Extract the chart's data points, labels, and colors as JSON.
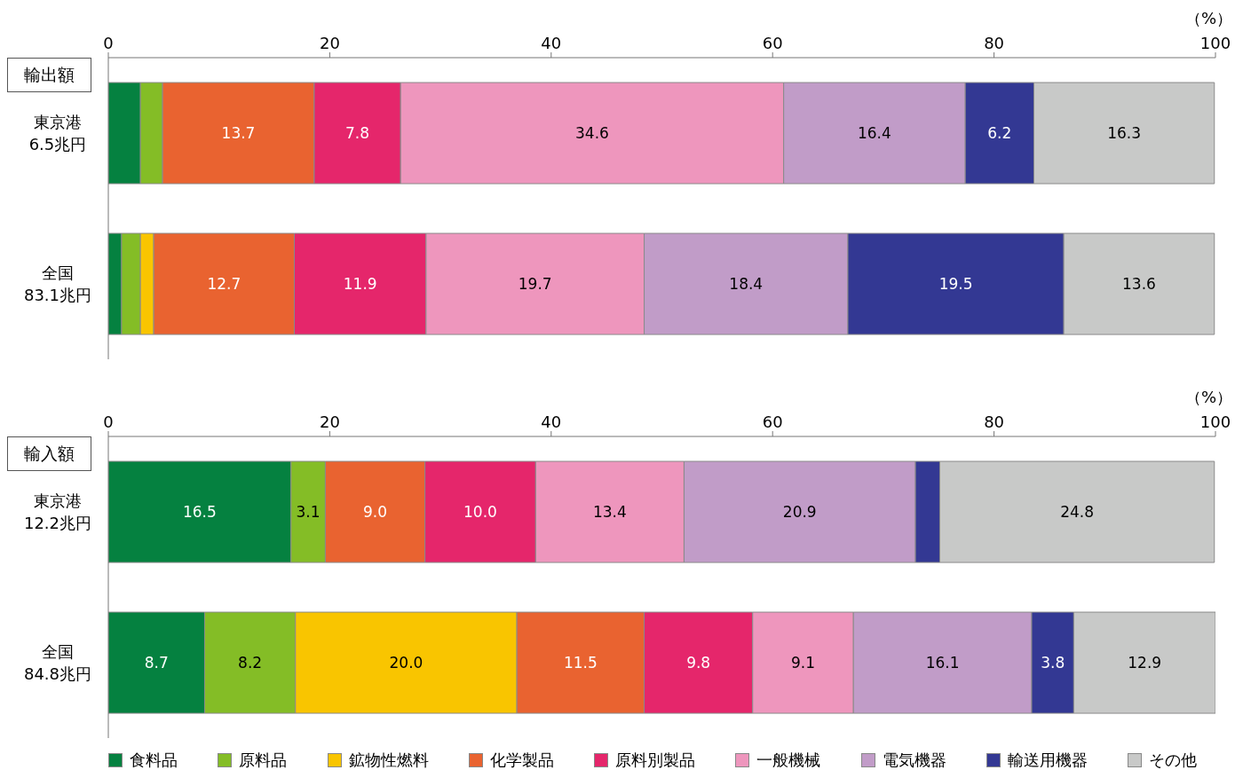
{
  "chart_data": [
    {
      "type": "bar",
      "orientation": "horizontal",
      "stacked": true,
      "title": "輸出額",
      "xlabel": "（%）",
      "categories": [
        "東京港\n6.5兆円",
        "全国\n83.1兆円"
      ],
      "xlim": [
        0,
        100
      ],
      "xticks": [
        0,
        20,
        40,
        60,
        80,
        100
      ],
      "series": [
        {
          "color": "#058140",
          "values": [
            2.9,
            1.2
          ],
          "value_labels": [
            null,
            null
          ]
        },
        {
          "color": "#84bd26",
          "values": [
            2.0,
            1.7
          ],
          "value_labels": [
            null,
            null
          ]
        },
        {
          "color": "#f9c500",
          "values": [
            null,
            1.2
          ],
          "value_labels": [
            null,
            null
          ]
        },
        {
          "color": "#e96330",
          "values": [
            13.7,
            12.7
          ],
          "value_labels": [
            "13.7",
            "12.7"
          ]
        },
        {
          "color": "#e5266b",
          "values": [
            7.8,
            11.9
          ],
          "value_labels": [
            "7.8",
            "11.9"
          ]
        },
        {
          "color": "#ee96bd",
          "values": [
            34.6,
            19.7
          ],
          "value_labels": [
            "34.6",
            "19.7"
          ]
        },
        {
          "color": "#c19cc8",
          "values": [
            16.4,
            18.4
          ],
          "value_labels": [
            "16.4",
            "18.4"
          ]
        },
        {
          "color": "#333893",
          "values": [
            6.2,
            19.5
          ],
          "value_labels": [
            "6.2",
            "19.5"
          ]
        },
        {
          "color": "#c8c9c8",
          "values": [
            16.3,
            13.6
          ],
          "value_labels": [
            "16.3",
            "13.6"
          ]
        }
      ]
    },
    {
      "type": "bar",
      "orientation": "horizontal",
      "stacked": true,
      "title": "輸入額",
      "xlabel": "（%）",
      "categories": [
        "東京港\n12.2兆円",
        "全国\n84.8兆円"
      ],
      "xlim": [
        0,
        100
      ],
      "xticks": [
        0,
        20,
        40,
        60,
        80,
        100
      ],
      "legend": "bottom",
      "series": [
        {
          "name": "食料品",
          "color": "#058140",
          "values": [
            16.5,
            8.7
          ],
          "value_labels": [
            "16.5",
            "8.7"
          ]
        },
        {
          "name": "原料品",
          "color": "#84bd26",
          "values": [
            3.1,
            8.2
          ],
          "value_labels": [
            "3.1",
            "8.2"
          ]
        },
        {
          "name": "鉱物性燃料",
          "color": "#f9c500",
          "values": [
            null,
            20.0
          ],
          "value_labels": [
            null,
            "20.0"
          ]
        },
        {
          "name": "化学製品",
          "color": "#e96330",
          "values": [
            9.0,
            11.5
          ],
          "value_labels": [
            "9.0",
            "11.5"
          ]
        },
        {
          "name": "原料別製品",
          "color": "#e5266b",
          "values": [
            10.0,
            9.8
          ],
          "value_labels": [
            "10.0",
            "9.8"
          ]
        },
        {
          "name": "一般機械",
          "color": "#ee96bd",
          "values": [
            13.4,
            9.1
          ],
          "value_labels": [
            "13.4",
            "9.1"
          ]
        },
        {
          "name": "電気機器",
          "color": "#c19cc8",
          "values": [
            20.9,
            16.1
          ],
          "value_labels": [
            "20.9",
            "16.1"
          ]
        },
        {
          "name": "輸送用機器",
          "color": "#333893",
          "values": [
            2.2,
            3.8
          ],
          "value_labels": [
            null,
            "3.8"
          ]
        },
        {
          "name": "その他",
          "color": "#c8c9c8",
          "values": [
            24.8,
            12.9
          ],
          "value_labels": [
            "24.8",
            "12.9"
          ]
        }
      ]
    }
  ]
}
